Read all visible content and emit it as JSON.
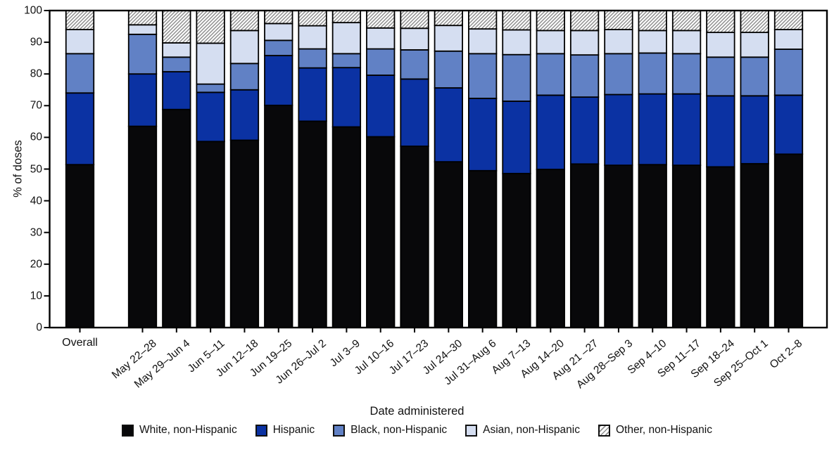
{
  "figure": {
    "y_axis": {
      "title": "% of doses",
      "tick_labels": [
        "0",
        "10",
        "20",
        "30",
        "40",
        "50",
        "60",
        "70",
        "80",
        "90",
        "100"
      ]
    },
    "x_axis": {
      "title": "Date administered"
    }
  },
  "chart_data": {
    "type": "bar",
    "stacked": true,
    "stacked_total": 100,
    "title": "",
    "xlabel": "Date administered",
    "ylabel": "% of doses",
    "ylim": [
      0,
      100
    ],
    "y_ticks": [
      0,
      10,
      20,
      30,
      40,
      50,
      60,
      70,
      80,
      90,
      100
    ],
    "grid": false,
    "legend_position": "bottom",
    "categories": [
      "Overall",
      "May 22–28",
      "May 29–Jun 4",
      "Jun 5–11",
      "Jun 12–18",
      "Jun 19–25",
      "Jun 26–Jul 2",
      "Jul 3–9",
      "Jul 10–16",
      "Jul 17–23",
      "Jul 24–30",
      "Jul 31–Aug 6",
      "Aug 7–13",
      "Aug 14–20",
      "Aug 21 –27",
      "Aug 28–Sep 3",
      "Sep 4–10",
      "Sep 11–17",
      "Sep 18–24",
      "Sep 25–Oct 1",
      "Oct 2–8"
    ],
    "series": [
      {
        "name": "White, non-Hispanic",
        "color": "#08080a",
        "pattern": "solid",
        "values": [
          51.4,
          63.5,
          68.8,
          58.7,
          59.1,
          70.1,
          65.1,
          63.3,
          60.2,
          57.2,
          52.3,
          49.5,
          48.6,
          49.9,
          51.6,
          51.2,
          51.4,
          51.2,
          50.7,
          51.7,
          54.7
        ]
      },
      {
        "name": "Hispanic",
        "color": "#0b32a3",
        "pattern": "solid",
        "values": [
          22.6,
          16.5,
          11.9,
          15.5,
          15.9,
          15.7,
          16.8,
          18.7,
          19.4,
          21.2,
          23.3,
          22.8,
          22.8,
          23.4,
          21.1,
          22.3,
          22.3,
          22.5,
          22.4,
          21.4,
          18.6
        ]
      },
      {
        "name": "Black, non-Hispanic",
        "color": "#6181c5",
        "pattern": "solid",
        "values": [
          12.4,
          12.5,
          4.6,
          2.6,
          8.3,
          4.8,
          6.0,
          4.4,
          8.3,
          9.2,
          11.6,
          14.1,
          14.7,
          13.1,
          13.3,
          12.9,
          12.9,
          12.7,
          12.2,
          12.2,
          14.5
        ]
      },
      {
        "name": "Asian, non-Hispanic",
        "color": "#d5def1",
        "pattern": "solid",
        "values": [
          7.6,
          3.0,
          4.5,
          12.9,
          10.4,
          5.3,
          7.3,
          9.8,
          6.6,
          6.8,
          8.1,
          7.8,
          7.8,
          7.3,
          7.7,
          7.6,
          7.1,
          7.3,
          7.8,
          7.8,
          6.2
        ]
      },
      {
        "name": "Other, non-Hispanic",
        "color": "#ffffff",
        "pattern": "hatch",
        "hatch_line_color": "#8f8f8f",
        "values": [
          6.0,
          4.5,
          10.2,
          10.3,
          6.3,
          4.1,
          4.8,
          3.8,
          5.5,
          5.6,
          4.7,
          5.8,
          6.1,
          6.3,
          6.3,
          6.0,
          6.3,
          6.3,
          6.9,
          6.9,
          6.0
        ]
      }
    ]
  }
}
